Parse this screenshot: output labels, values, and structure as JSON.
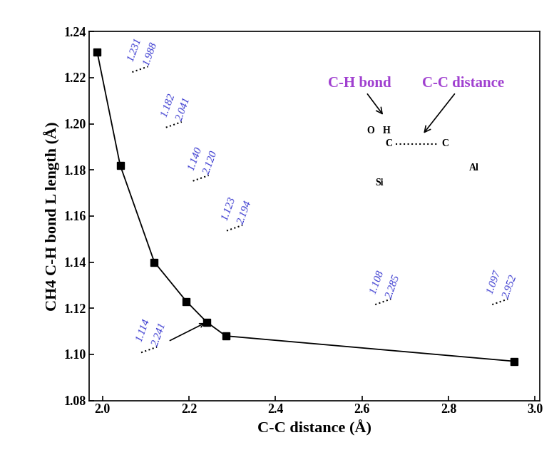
{
  "chart_data": {
    "type": "line",
    "x_label": "C-C distance (Å)",
    "y_label": "CH4 C-H bond L length (Å)",
    "x": [
      1.988,
      2.041,
      2.12,
      2.194,
      2.241,
      2.285,
      2.952
    ],
    "values": [
      1.231,
      1.182,
      1.14,
      1.123,
      1.114,
      1.108,
      1.097
    ],
    "color": "#000000",
    "marker": "square",
    "line_style": "solid",
    "xlim": [
      1.97,
      3.01
    ],
    "xticks": [
      {
        "value": 2.0,
        "label": "2.0"
      },
      {
        "value": 2.2,
        "label": "2.2"
      },
      {
        "value": 2.4,
        "label": "2.4"
      },
      {
        "value": 2.6,
        "label": "2.6"
      },
      {
        "value": 2.8,
        "label": "2.8"
      },
      {
        "value": 3.0,
        "label": "3.0"
      }
    ],
    "ylim": [
      1.08,
      1.24
    ],
    "yticks": [
      1.08,
      {
        "value": 1.1,
        "label": "1.10"
      },
      1.12,
      1.14,
      1.16,
      1.18,
      {
        "value": 1.2,
        "label": "1.20"
      },
      1.22,
      1.24
    ],
    "annotations": {
      "point_labels": [
        [
          "1.231",
          "1.988"
        ],
        [
          "1.182",
          "2.041"
        ],
        [
          "1.140",
          "2.120"
        ],
        [
          "1.123",
          "2.194"
        ],
        [
          "1.114",
          "2.241"
        ],
        [
          "1.108",
          "2.285"
        ],
        [
          "1.097",
          "2.952"
        ]
      ],
      "diagram": {
        "bond": "C-H bond",
        "distance": "C-C distance",
        "atoms": [
          "O",
          "H",
          "C",
          "C",
          "Si",
          "Al"
        ]
      }
    }
  }
}
